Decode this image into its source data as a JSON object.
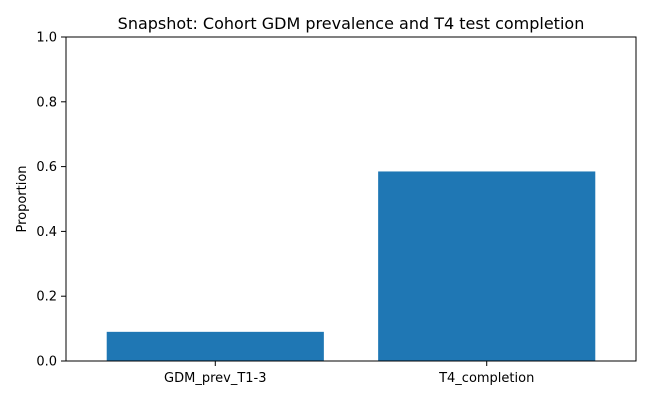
{
  "chart_data": {
    "type": "bar",
    "title": "Snapshot: Cohort GDM prevalence and T4 test completion",
    "xlabel": "",
    "ylabel": "Proportion",
    "categories": [
      "GDM_prev_T1-3",
      "T4_completion"
    ],
    "values": [
      0.09,
      0.585
    ],
    "ylim": [
      0,
      1.0
    ],
    "yticks": [
      0.0,
      0.2,
      0.4,
      0.6,
      0.8,
      1.0
    ],
    "ytick_labels": [
      "0.0",
      "0.2",
      "0.4",
      "0.6",
      "0.8",
      "1.0"
    ],
    "bar_color": "#1f77b4",
    "grid": false,
    "legend": "none"
  }
}
